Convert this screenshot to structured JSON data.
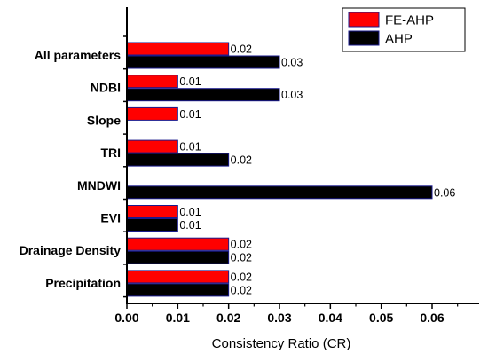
{
  "chart_data": {
    "type": "bar",
    "orientation": "horizontal",
    "categories": [
      "All parameters",
      "NDBI",
      "Slope",
      "TRI",
      "MNDWI",
      "EVI",
      "Drainage Density",
      "Precipitation"
    ],
    "series": [
      {
        "name": "FE-AHP",
        "color": "#ff0000",
        "values": [
          0.02,
          0.01,
          0.01,
          0.01,
          null,
          0.01,
          0.02,
          0.02
        ],
        "labels": [
          "0.02",
          "0.01",
          "0.01",
          "0.01",
          "",
          "0.01",
          "0.02",
          "0.02"
        ]
      },
      {
        "name": "AHP",
        "color": "#000000",
        "values": [
          0.03,
          0.03,
          null,
          0.02,
          0.06,
          0.01,
          0.02,
          0.02
        ],
        "labels": [
          "0.03",
          "0.03",
          "",
          "0.02",
          "0.06",
          "0.01",
          "0.02",
          "0.02"
        ]
      }
    ],
    "xlabel": "Consistency Ratio (CR)",
    "ylabel": "",
    "xlim": [
      0,
      0.07
    ],
    "xticks": [
      "0.00",
      "0.01",
      "0.02",
      "0.03",
      "0.04",
      "0.05",
      "0.06"
    ],
    "legend_position": "top-right",
    "grid": false,
    "bar_edge_color": "#1a1a8c"
  }
}
